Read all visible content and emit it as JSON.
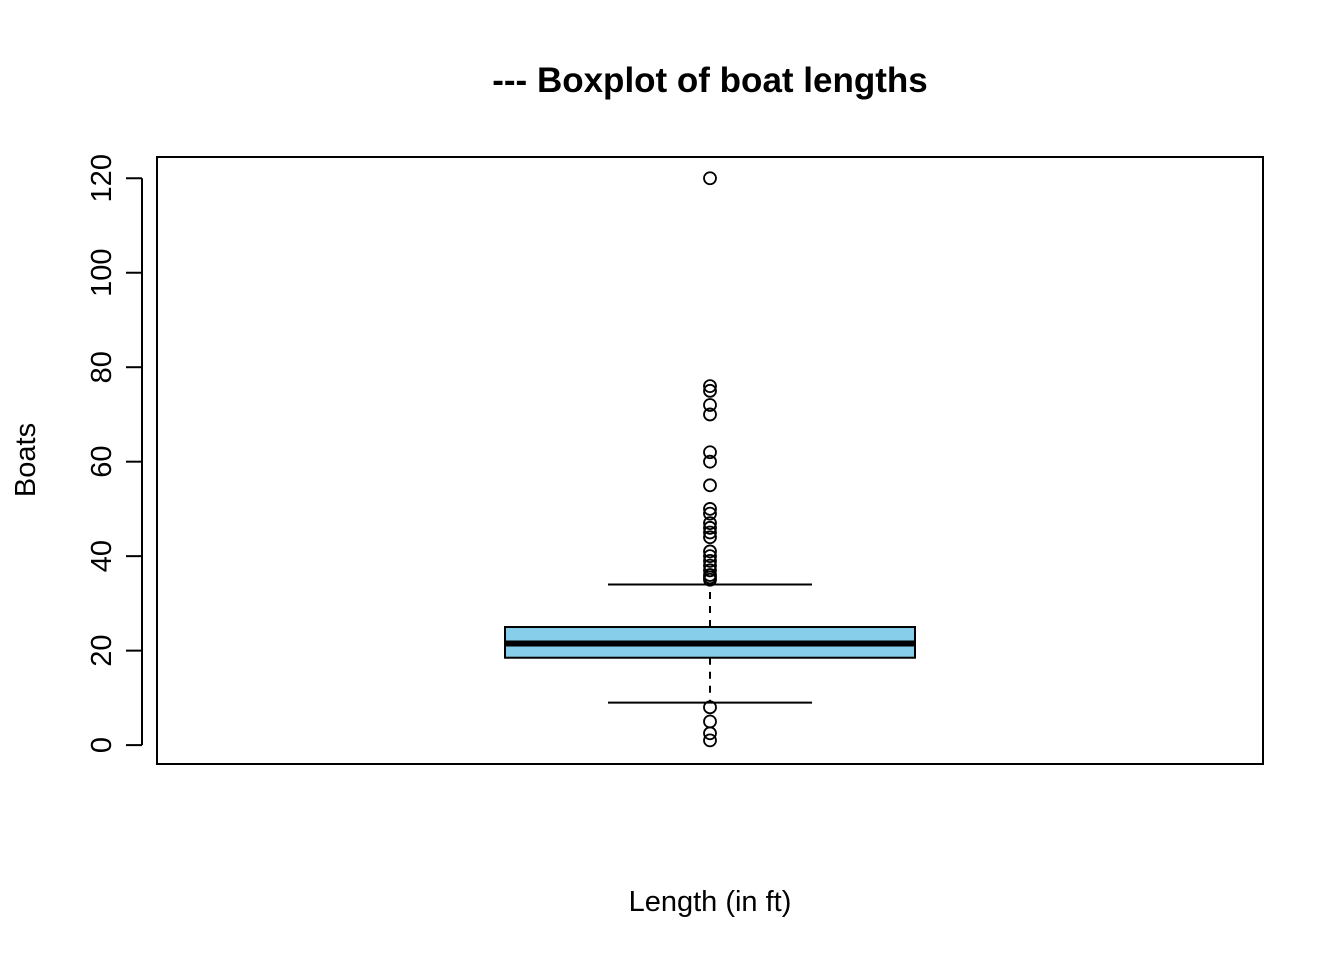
{
  "chart_data": {
    "type": "boxplot",
    "title": "--- Boxplot of boat lengths",
    "xlabel": "Length (in ft)",
    "ylabel": "Boats",
    "ylim": [
      -4,
      124.5
    ],
    "yticks": [
      0,
      20,
      40,
      60,
      80,
      100,
      120
    ],
    "grid": false,
    "legend": "none",
    "box": {
      "whisker_low": 9,
      "q1": 18.5,
      "median": 21.5,
      "q3": 25,
      "whisker_high": 34,
      "fill": "#87CEEB"
    },
    "outliers": [
      1,
      2.5,
      5,
      8,
      35,
      35.5,
      36,
      37,
      38,
      39,
      40,
      41,
      44,
      45,
      46,
      47,
      49,
      50,
      55,
      60,
      62,
      70,
      72,
      75,
      76,
      120
    ]
  }
}
